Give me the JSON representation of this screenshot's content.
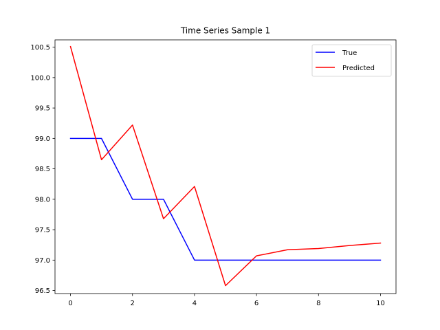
{
  "chart_data": {
    "type": "line",
    "title": "Time Series Sample 1",
    "xlabel": "",
    "ylabel": "",
    "xlim": [
      -0.5,
      10.5
    ],
    "ylim": [
      96.45,
      100.62
    ],
    "x_ticks": [
      0,
      2,
      4,
      6,
      8,
      10
    ],
    "y_ticks": [
      96.5,
      97.0,
      97.5,
      98.0,
      98.5,
      99.0,
      99.5,
      100.0,
      100.5
    ],
    "grid": false,
    "legend_position": "top-right",
    "x": [
      0,
      1,
      2,
      3,
      4,
      5,
      6,
      7,
      8,
      9,
      10
    ],
    "series": [
      {
        "name": "True",
        "color": "#0000ff",
        "values": [
          99.0,
          99.0,
          98.0,
          98.0,
          97.0,
          97.0,
          97.0,
          97.0,
          97.0,
          97.0,
          97.0
        ]
      },
      {
        "name": "Predicted",
        "color": "#ff0000",
        "values": [
          100.51,
          98.65,
          99.22,
          97.68,
          98.21,
          96.58,
          97.07,
          97.17,
          97.19,
          97.24,
          97.28
        ]
      }
    ]
  }
}
